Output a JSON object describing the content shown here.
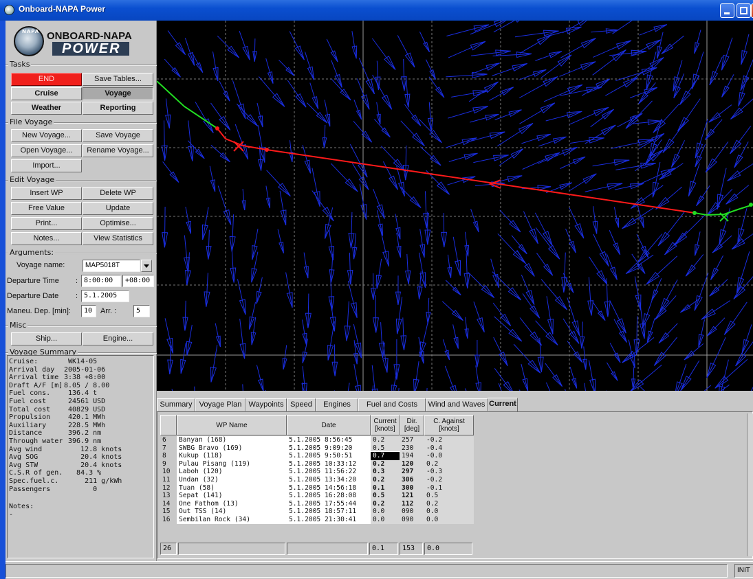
{
  "window": {
    "title": "Onboard-NAPA Power"
  },
  "logo": {
    "ring_text": "NAPA",
    "brand": "ONBOARD-NAPA",
    "product": "POWER"
  },
  "tasks": {
    "label": "Tasks",
    "end": "END",
    "save_tables": "Save Tables...",
    "cruise": "Cruise",
    "voyage": "Voyage",
    "weather": "Weather",
    "reporting": "Reporting"
  },
  "file_voyage": {
    "label": "File Voyage",
    "new": "New Voyage...",
    "save": "Save Voyage",
    "open": "Open Voyage...",
    "rename": "Rename Voyage...",
    "import": "Import..."
  },
  "edit_voyage": {
    "label": "Edit Voyage",
    "insert_wp": "Insert WP",
    "delete_wp": "Delete WP",
    "free_value": "Free Value",
    "update": "Update",
    "print": "Print...",
    "optimise": "Optimise...",
    "notes": "Notes...",
    "view_stats": "View Statistics"
  },
  "arguments": {
    "label": "Arguments:",
    "voyage_name_label": "Voyage name:",
    "voyage_name": "MAP5018T",
    "departure_time_label": "Departure Time",
    "colon": ":",
    "departure_time": "8:00:00",
    "timezone": "+08:00",
    "departure_date_label": "Departure Date",
    "departure_date": "5.1.2005",
    "maneu_label": "Maneu. Dep. [min]:",
    "maneu_dep": "10",
    "arr_label": "Arr. :",
    "maneu_arr": "5"
  },
  "misc": {
    "label": "Misc",
    "ship": "Ship...",
    "engine": "Engine..."
  },
  "voyage_summary": {
    "label": "Voyage Summary",
    "rows": [
      {
        "k": "Cruise:",
        "v": " WK14-05"
      },
      {
        "k": "Arrival day",
        "v": "2005-01-06"
      },
      {
        "k": "Arrival time",
        "v": "3:38 +8:00"
      },
      {
        "k": "Draft A/F [m]",
        "v": "8.05 / 8.00"
      },
      {
        "k": "Fuel cons.",
        "v": " 136.4 t"
      },
      {
        "k": "Fuel cost",
        "v": " 24561 USD"
      },
      {
        "k": "Total cost",
        "v": " 40829 USD"
      },
      {
        "k": "Propulsion",
        "v": " 420.1 MWh"
      },
      {
        "k": "Auxiliary",
        "v": " 228.5 MWh"
      },
      {
        "k": "Distance",
        "v": " 396.2 nm"
      },
      {
        "k": "Through water",
        "v": " 396.9 nm"
      },
      {
        "k": "Avg wind",
        "v": "    12.8 knots"
      },
      {
        "k": "Avg SOG",
        "v": "    20.4 knots"
      },
      {
        "k": "Avg STW",
        "v": "    20.4 knots"
      },
      {
        "k": "C.S.R of gen.",
        "v": "   84.3 %"
      },
      {
        "k": "Spec.fuel.c.",
        "v": "     211 g/kWh"
      },
      {
        "k": "Passengers",
        "v": "       0"
      }
    ],
    "notes_label": "Notes:",
    "notes": "-"
  },
  "tabs": [
    "Summary",
    "Voyage Plan",
    "Waypoints",
    "Speed",
    "Engines",
    "Fuel and Costs",
    "Wind and Waves",
    "Current"
  ],
  "table": {
    "headers": {
      "name": "WP Name",
      "date": "Date",
      "current": "Current\n[knots]",
      "dir": "Dir.\n[deg]",
      "against": "C. Against\n[knots]"
    },
    "rows": [
      {
        "n": "6",
        "name": "Banyan (168)",
        "date": "5.1.2005 8:56:45",
        "cur": "0.2",
        "dir": "257",
        "ag": "-0.2",
        "b": false
      },
      {
        "n": "7",
        "name": "SWBG Bravo (169)",
        "date": "5.1.2005 9:09:20",
        "cur": "0.5",
        "dir": "230",
        "ag": "-0.4",
        "b": false
      },
      {
        "n": "8",
        "name": "Kukup (118)",
        "date": "5.1.2005 9:50:51",
        "cur": "0.7",
        "dir": "194",
        "ag": "-0.0",
        "b": false,
        "sel": true
      },
      {
        "n": "9",
        "name": "Pulau Pisang (119)",
        "date": "5.1.2005 10:33:12",
        "cur": "0.2",
        "dir": "120",
        "ag": "0.2",
        "b": true
      },
      {
        "n": "10",
        "name": "Laboh (120)",
        "date": "5.1.2005 11:56:22",
        "cur": "0.3",
        "dir": "297",
        "ag": "-0.3",
        "b": true
      },
      {
        "n": "11",
        "name": "Undan (32)",
        "date": "5.1.2005 13:34:20",
        "cur": "0.2",
        "dir": "306",
        "ag": "-0.2",
        "b": true
      },
      {
        "n": "12",
        "name": "Tuan (58)",
        "date": "5.1.2005 14:56:18",
        "cur": "0.1",
        "dir": "300",
        "ag": "-0.1",
        "b": true
      },
      {
        "n": "13",
        "name": "Sepat (141)",
        "date": "5.1.2005 16:28:08",
        "cur": "0.5",
        "dir": "121",
        "ag": "0.5",
        "b": true
      },
      {
        "n": "14",
        "name": "One Fathom (13)",
        "date": "5.1.2005 17:55:44",
        "cur": "0.2",
        "dir": "112",
        "ag": "0.2",
        "b": true
      },
      {
        "n": "15",
        "name": "Out TSS (14)",
        "date": "5.1.2005 18:57:11",
        "cur": "0.0",
        "dir": "090",
        "ag": "0.0",
        "b": false
      },
      {
        "n": "16",
        "name": "Sembilan Rock (34)",
        "date": "5.1.2005 21:30:41",
        "cur": "0.0",
        "dir": "090",
        "ag": "0.0",
        "b": false
      }
    ],
    "footer": {
      "count": "26",
      "current": "0.1",
      "dir": "153",
      "against": "0.0"
    }
  },
  "status": {
    "state": "INIT"
  },
  "colors": {
    "route_red": "#ff1a1a",
    "route_green": "#22dd22",
    "current_arrows": "#1a2ee0",
    "map_bg": "#000000",
    "end_button": "#f0201c"
  }
}
